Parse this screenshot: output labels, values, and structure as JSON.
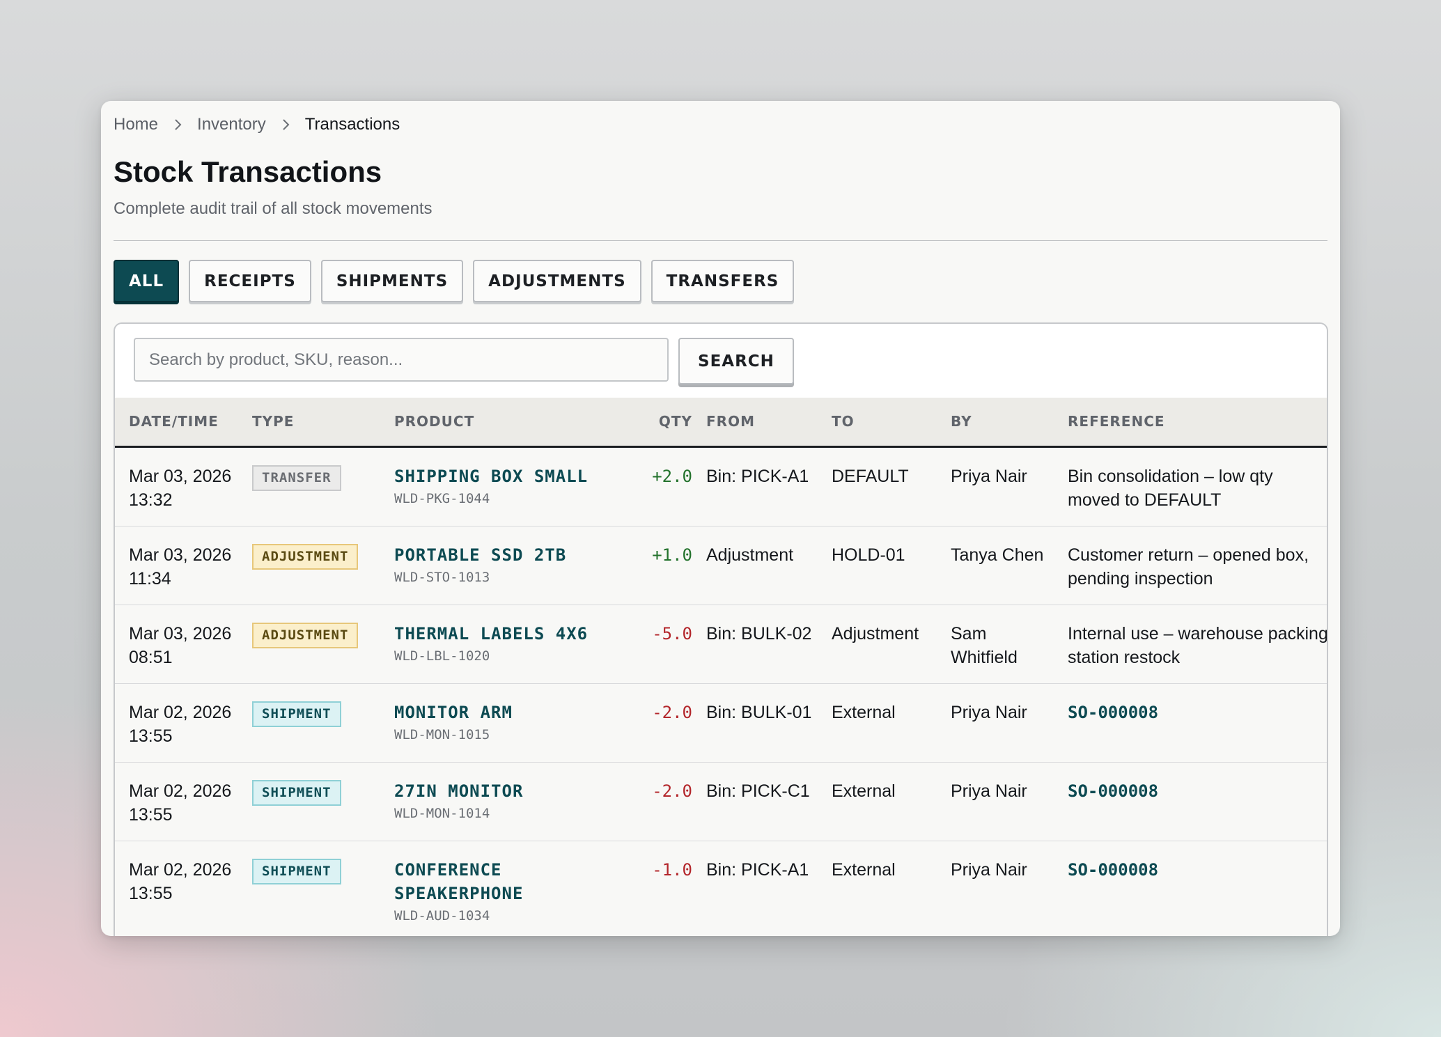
{
  "breadcrumb": {
    "items": [
      "Home",
      "Inventory",
      "Transactions"
    ]
  },
  "header": {
    "title": "Stock Transactions",
    "subtitle": "Complete audit trail of all stock movements"
  },
  "filters": {
    "tabs": [
      {
        "label": "ALL",
        "active": true
      },
      {
        "label": "RECEIPTS",
        "active": false
      },
      {
        "label": "SHIPMENTS",
        "active": false
      },
      {
        "label": "ADJUSTMENTS",
        "active": false
      },
      {
        "label": "TRANSFERS",
        "active": false
      }
    ]
  },
  "search": {
    "placeholder": "Search by product, SKU, reason...",
    "value": "",
    "button_label": "SEARCH"
  },
  "table": {
    "columns": [
      "DATE/TIME",
      "TYPE",
      "PRODUCT",
      "QTY",
      "FROM",
      "TO",
      "BY",
      "REFERENCE"
    ],
    "rows": [
      {
        "date": "Mar 03, 2026 13:32",
        "type": "TRANSFER",
        "product": "SHIPPING BOX SMALL",
        "sku": "WLD-PKG-1044",
        "qty": "+2.0",
        "from": "Bin: PICK-A1",
        "to": "DEFAULT",
        "by": "Priya Nair",
        "reference": "Bin consolidation – low qty moved to DEFAULT"
      },
      {
        "date": "Mar 03, 2026 11:34",
        "type": "ADJUSTMENT",
        "product": "PORTABLE SSD 2TB",
        "sku": "WLD-STO-1013",
        "qty": "+1.0",
        "from": "Adjustment",
        "to": "HOLD-01",
        "by": "Tanya Chen",
        "reference": "Customer return – opened box, pending inspection"
      },
      {
        "date": "Mar 03, 2026 08:51",
        "type": "ADJUSTMENT",
        "product": "THERMAL LABELS 4X6",
        "sku": "WLD-LBL-1020",
        "qty": "-5.0",
        "from": "Bin: BULK-02",
        "to": "Adjustment",
        "by": "Sam Whitfield",
        "reference": "Internal use – warehouse packing station restock"
      },
      {
        "date": "Mar 02, 2026 13:55",
        "type": "SHIPMENT",
        "product": "MONITOR ARM",
        "sku": "WLD-MON-1015",
        "qty": "-2.0",
        "from": "Bin: BULK-01",
        "to": "External",
        "by": "Priya Nair",
        "reference": "SO-000008"
      },
      {
        "date": "Mar 02, 2026 13:55",
        "type": "SHIPMENT",
        "product": "27IN MONITOR",
        "sku": "WLD-MON-1014",
        "qty": "-2.0",
        "from": "Bin: PICK-C1",
        "to": "External",
        "by": "Priya Nair",
        "reference": "SO-000008"
      },
      {
        "date": "Mar 02, 2026 13:55",
        "type": "SHIPMENT",
        "product": "CONFERENCE SPEAKERPHONE",
        "sku": "WLD-AUD-1034",
        "qty": "-1.0",
        "from": "Bin: PICK-A1",
        "to": "External",
        "by": "Priya Nair",
        "reference": "SO-000008"
      }
    ]
  },
  "colors": {
    "accent": "#0d4a52",
    "positive": "#23722c",
    "negative": "#b3262b"
  }
}
